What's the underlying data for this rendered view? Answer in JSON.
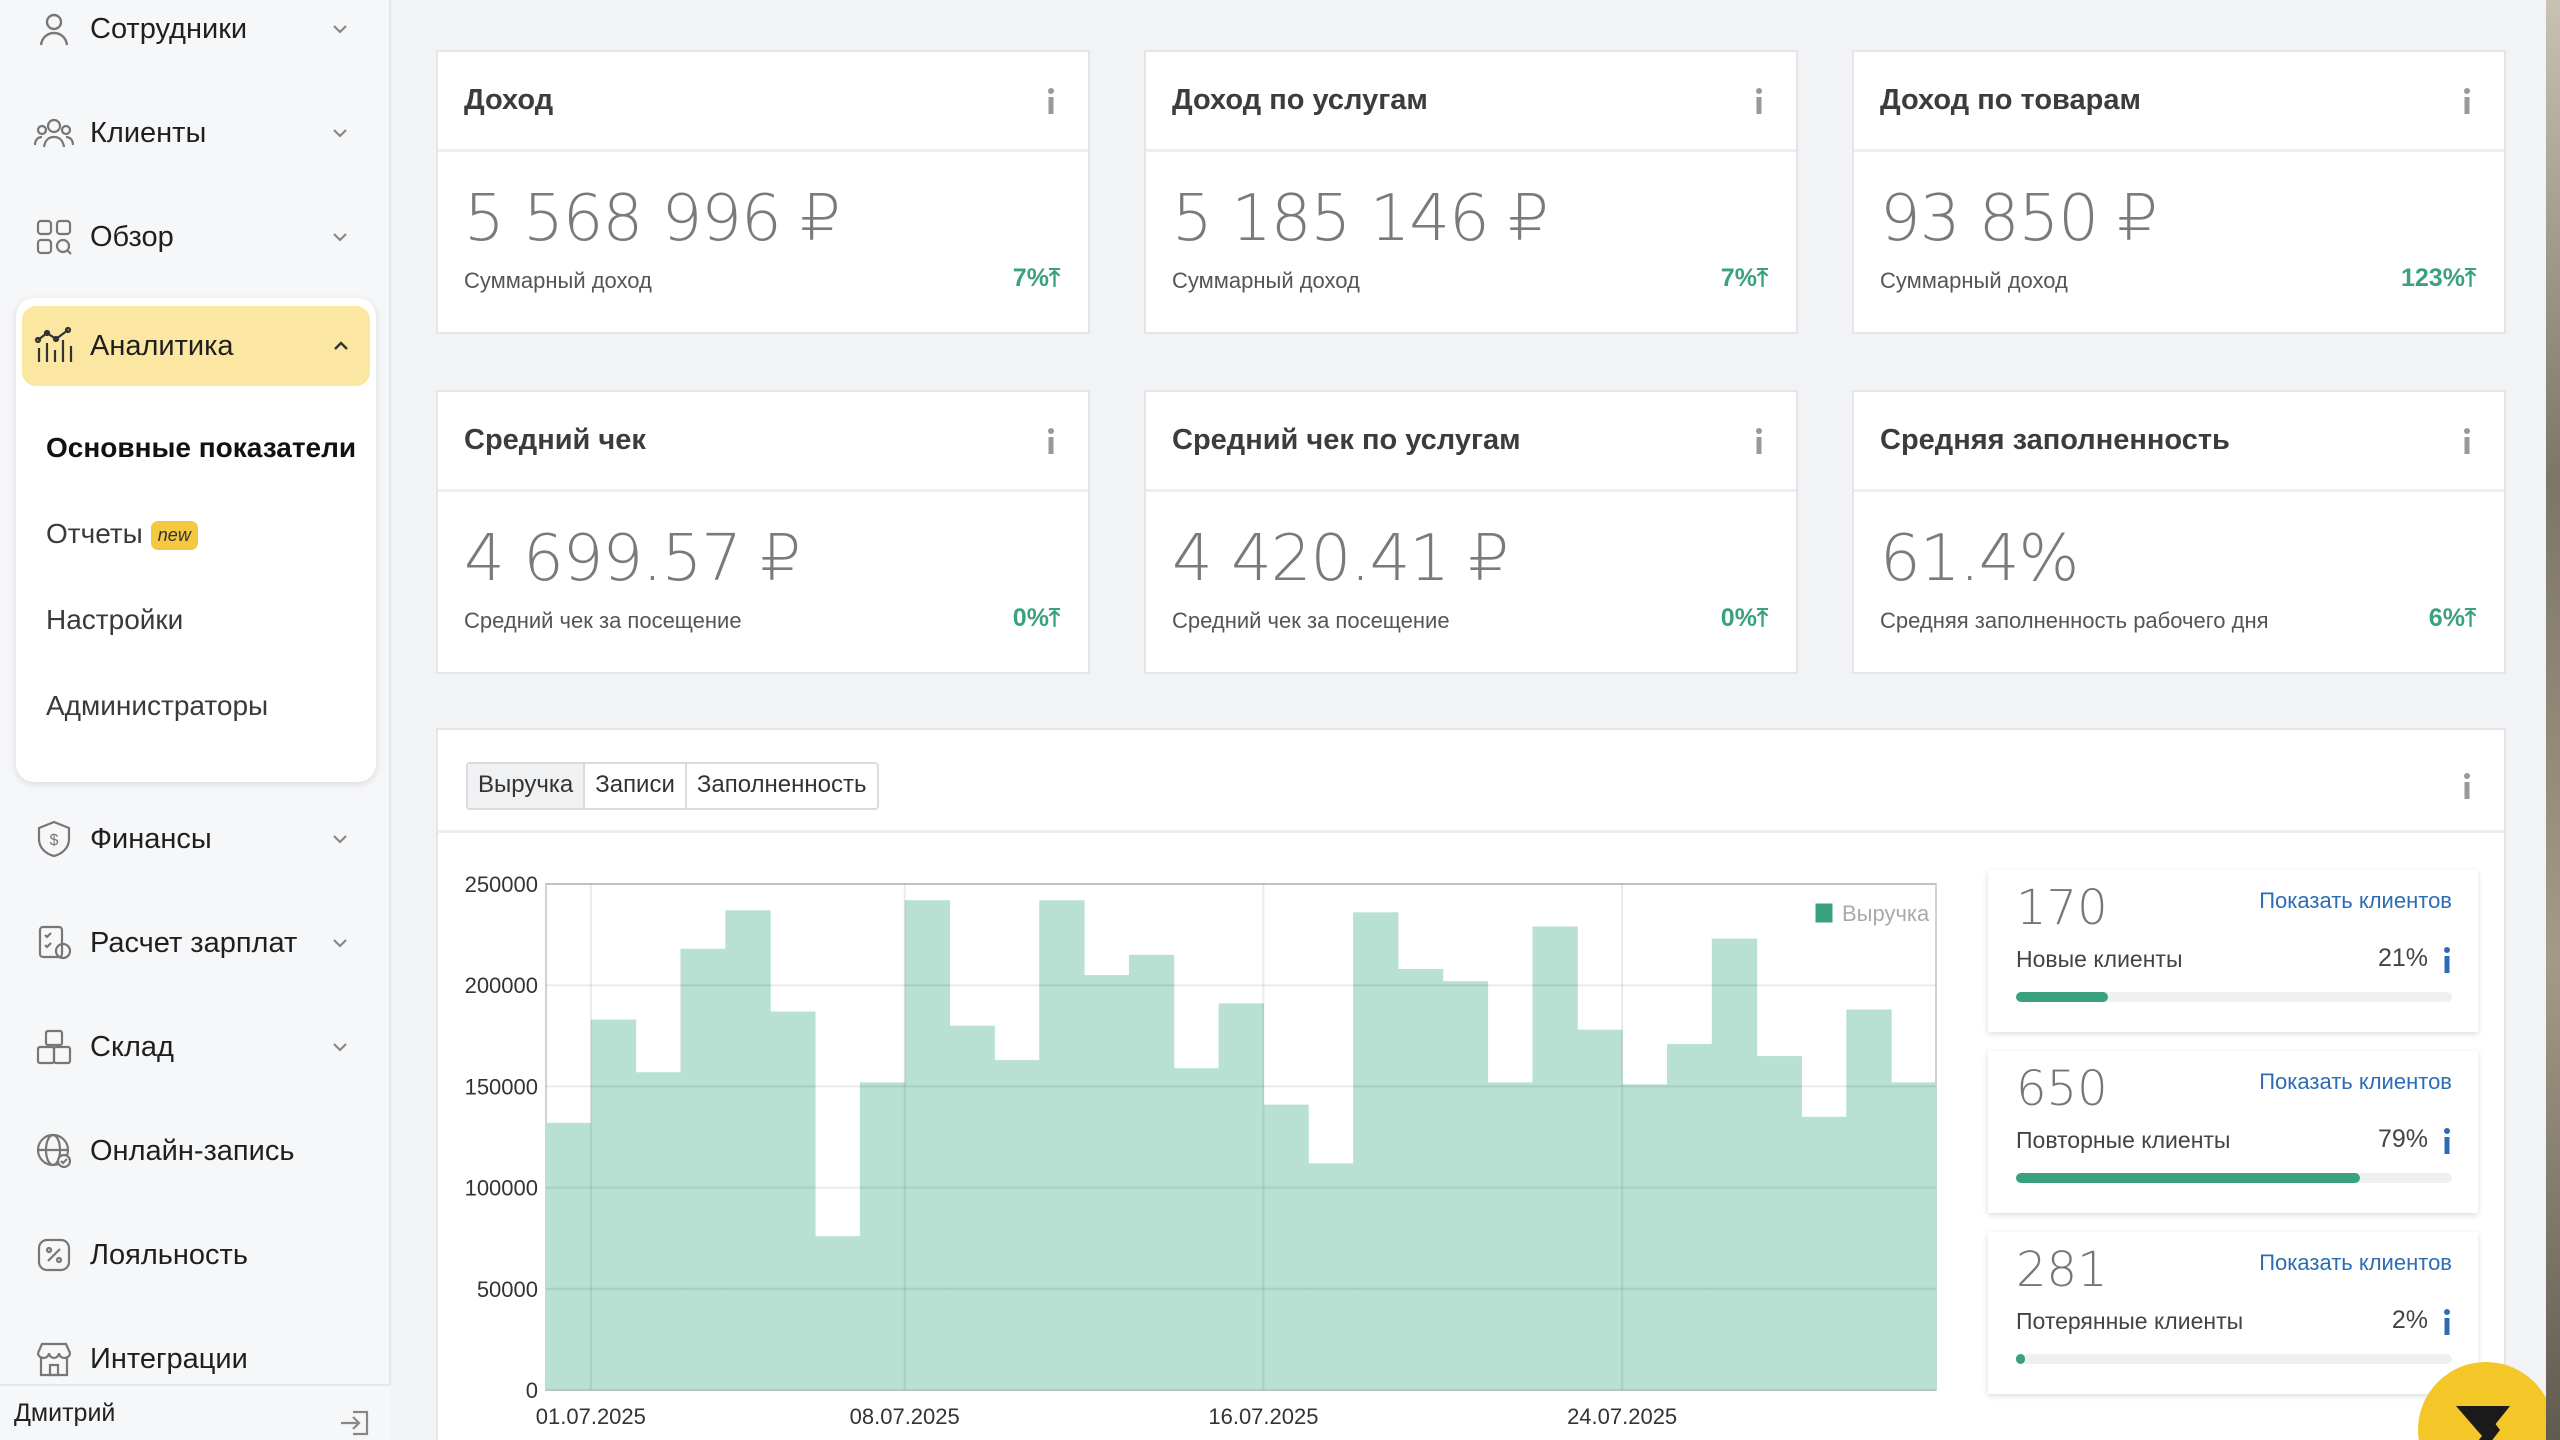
{
  "sidebar": {
    "items_top": [
      {
        "label": "Сотрудники",
        "icon": "user-icon"
      },
      {
        "label": "Клиенты",
        "icon": "clients-icon"
      },
      {
        "label": "Обзор",
        "icon": "overview-icon"
      }
    ],
    "active": {
      "label": "Аналитика",
      "icon": "analytics-icon"
    },
    "submenu": [
      {
        "label": "Основные показатели"
      },
      {
        "label": "Отчеты",
        "badge": "new"
      },
      {
        "label": "Настройки"
      },
      {
        "label": "Администраторы"
      }
    ],
    "items_bottom": [
      {
        "label": "Финансы",
        "icon": "finance-icon"
      },
      {
        "label": "Расчет зарплат",
        "icon": "payroll-icon"
      },
      {
        "label": "Склад",
        "icon": "warehouse-icon"
      },
      {
        "label": "Онлайн-запись",
        "icon": "online-booking-icon"
      },
      {
        "label": "Лояльность",
        "icon": "loyalty-icon"
      },
      {
        "label": "Интеграции",
        "icon": "integrations-icon"
      }
    ],
    "user_name": "Дмитрий"
  },
  "kpis": [
    {
      "title": "Доход",
      "value": "5 568 996 ₽",
      "sub": "Суммарный доход",
      "pct": "7%"
    },
    {
      "title": "Доход по услугам",
      "value": "5 185 146 ₽",
      "sub": "Суммарный доход",
      "pct": "7%"
    },
    {
      "title": "Доход по товарам",
      "value": "93 850 ₽",
      "sub": "Суммарный доход",
      "pct": "123%"
    },
    {
      "title": "Средний чек",
      "value": "4 699.57 ₽",
      "sub": "Средний чек за посещение",
      "pct": "0%"
    },
    {
      "title": "Средний чек по услугам",
      "value": "4 420.41 ₽",
      "sub": "Средний чек за посещение",
      "pct": "0%"
    },
    {
      "title": "Средняя заполненность",
      "value": "61.4%",
      "sub": "Средняя заполненность рабочего дня",
      "pct": "6%"
    }
  ],
  "chart_tabs": [
    "Выручка",
    "Записи",
    "Заполненность"
  ],
  "chart_data": {
    "type": "bar",
    "series": [
      {
        "name": "Выручка",
        "values": [
          132000,
          183000,
          157000,
          218000,
          237000,
          187000,
          76000,
          152000,
          242000,
          180000,
          163000,
          242000,
          205000,
          215000,
          159000,
          191000,
          141000,
          112000,
          236000,
          208000,
          202000,
          152000,
          229000,
          178000,
          151000,
          171000,
          223000,
          165000,
          135000,
          188000,
          152000
        ]
      }
    ],
    "x_labels": [
      "01.07.2025",
      "08.07.2025",
      "16.07.2025",
      "24.07.2025"
    ],
    "x_label_indices": [
      1,
      8,
      16,
      24
    ],
    "y_ticks": [
      0,
      50000,
      100000,
      150000,
      200000,
      250000
    ],
    "ylim": [
      0,
      250000
    ],
    "legend_position": "top-right",
    "color": "#b8e0d3",
    "grid": true
  },
  "client_stats": [
    {
      "count": "170",
      "label": "Новые клиенты",
      "pct": "21%",
      "fill": 0.21,
      "link": "Показать клиентов"
    },
    {
      "count": "650",
      "label": "Повторные клиенты",
      "pct": "79%",
      "fill": 0.79,
      "link": "Показать клиентов"
    },
    {
      "count": "281",
      "label": "Потерянные клиенты",
      "pct": "2%",
      "fill": 0.02,
      "link": "Показать клиентов"
    }
  ],
  "colors": {
    "accent": "#fbe7a1",
    "positive": "#3aa17e",
    "bar": "#b8e0d3",
    "link": "#2c6cb5",
    "chat": "#f3c727"
  }
}
